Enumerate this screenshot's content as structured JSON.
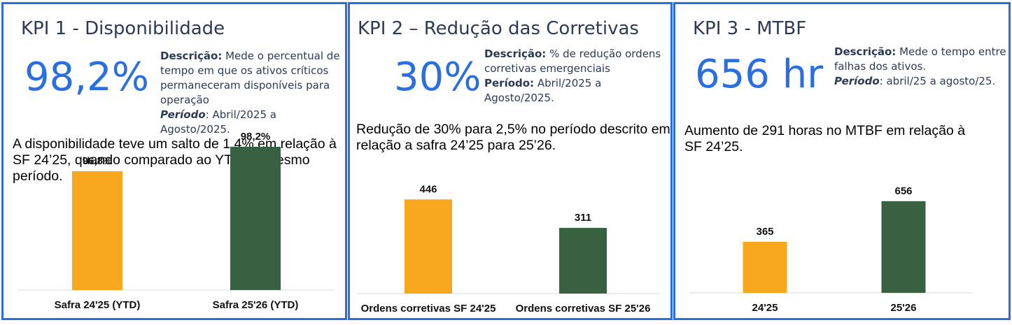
{
  "colors": {
    "border": "#2f6be0",
    "accent": "#2a6fe0",
    "orange": "#f7a71c",
    "green": "#376140"
  },
  "kpis": [
    {
      "title": "KPI 1 - Disponibilidade",
      "value": "98,2%",
      "desc_label": "Descrição:",
      "desc_text": " Mede o percentual de tempo em que os ativos críticos permaneceram disponíveis para operação",
      "period_label": "Período",
      "period_text": ": Abril/2025 a Agosto/2025.",
      "summary": "A disponibilidade teve um salto de 1,4% em relação à SF 24’25, quando comparado ao YTD no mesmo período."
    },
    {
      "title": "KPI 2 – Redução das Corretivas",
      "value": "30%",
      "desc_label": "Descrição:",
      "desc_text": " % de redução ordens corretivas emergenciais",
      "period_label": "Período:",
      "period_text": " Abril/2025 a Agosto/2025.",
      "summary": "Redução de 30% para 2,5% no período descrito em relação a safra 24’25 para 25’26."
    },
    {
      "title": "KPI 3 - MTBF",
      "value": "656 hr",
      "desc_label": "Descrição:",
      "desc_text": " Mede o tempo entre falhas dos ativos.",
      "period_label": "Período",
      "period_text": ": abril/25 a agosto/25.",
      "summary": "Aumento de 291 horas no MTBF em relação à SF 24’25."
    }
  ],
  "chart_data": [
    {
      "type": "bar",
      "categories": [
        "Safra 24'25 (YTD)",
        "Safra 25'26 (YTD)"
      ],
      "values": [
        96.8,
        98.2
      ],
      "data_labels": [
        "96,8%",
        "98,2%"
      ],
      "bar_colors": [
        "#f7a71c",
        "#376140"
      ],
      "ylim": [
        90,
        100
      ],
      "grid": false
    },
    {
      "type": "bar",
      "categories": [
        "Ordens corretivas SF 24'25",
        "Ordens corretivas SF 25'26"
      ],
      "values": [
        446,
        311
      ],
      "data_labels": [
        "446",
        "311"
      ],
      "bar_colors": [
        "#f7a71c",
        "#376140"
      ],
      "ylim": [
        0,
        500
      ],
      "grid": false
    },
    {
      "type": "bar",
      "categories": [
        "24'25",
        "25'26"
      ],
      "values": [
        365,
        656
      ],
      "data_labels": [
        "365",
        "656"
      ],
      "bar_colors": [
        "#f7a71c",
        "#376140"
      ],
      "ylim": [
        0,
        750
      ],
      "grid": false
    }
  ]
}
